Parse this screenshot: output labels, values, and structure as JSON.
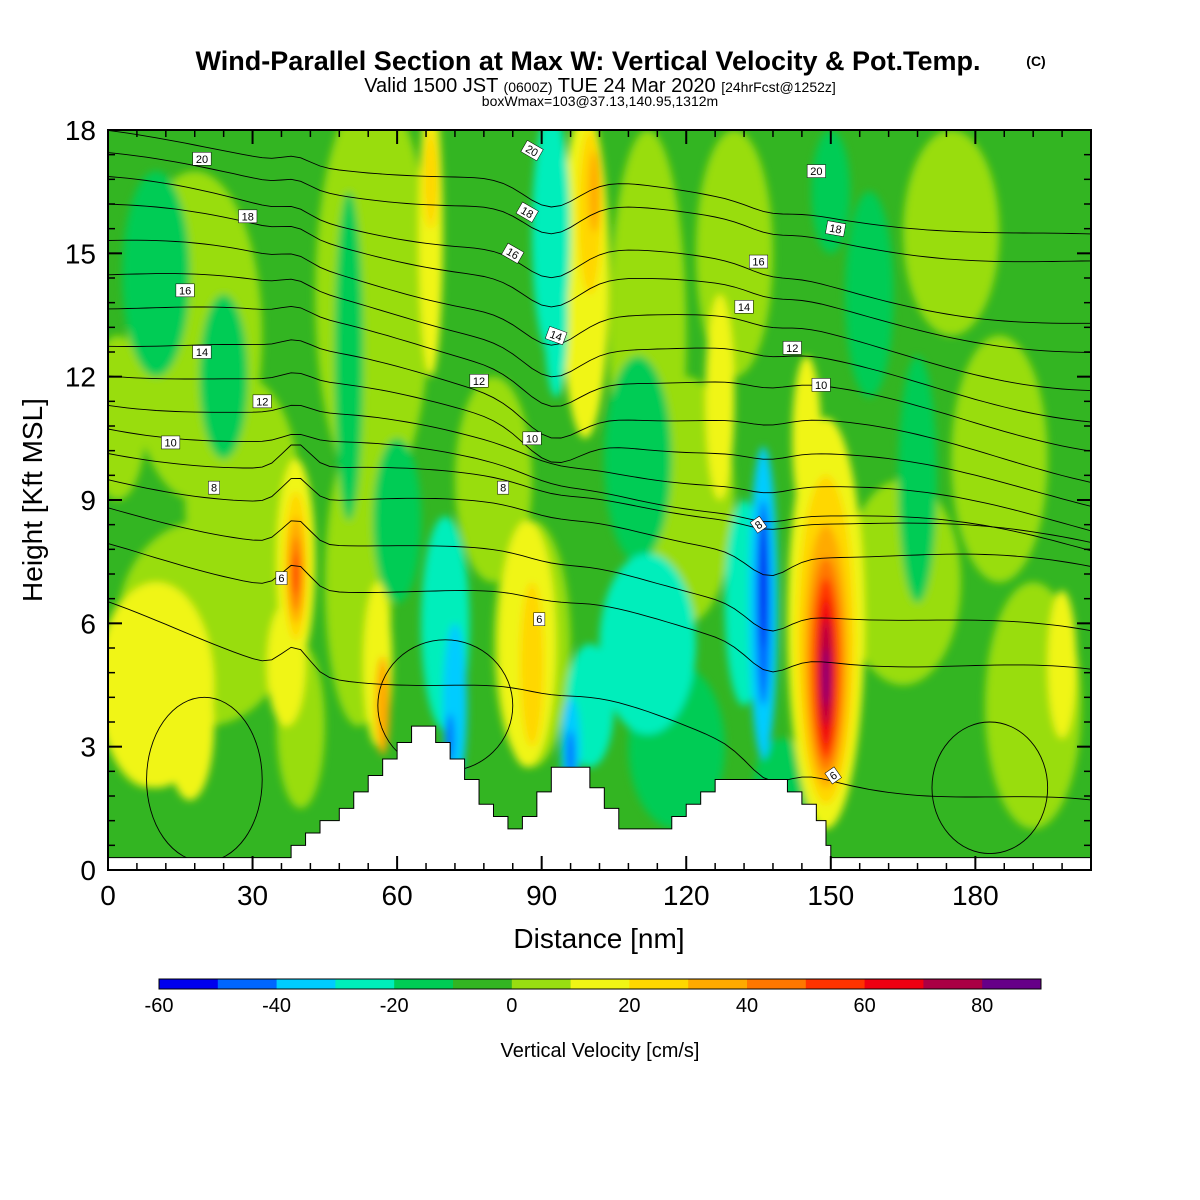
{
  "header": {
    "title": "Wind-Parallel Section at Max W: Vertical Velocity & Pot.Temp.",
    "copyright": "(C)",
    "valid_prefix": "Valid 1500 JST",
    "valid_utc": "(0600Z)",
    "valid_date": "TUE 24 Mar 2020",
    "forecast": "[24hrFcst@1252z]",
    "boxwmax": "boxWmax=103@37.13,140.95,1312m"
  },
  "chart_data": {
    "type": "heatmap",
    "title": "Wind-Parallel Section at Max W: Vertical Velocity & Pot.Temp.",
    "xlabel": "Distance [nm]",
    "ylabel": "Height [Kft MSL]",
    "xlim": [
      0,
      204
    ],
    "ylim": [
      0,
      18
    ],
    "x_ticks": [
      "0",
      "30",
      "60",
      "90",
      "120",
      "150",
      "180"
    ],
    "x_tick_values": [
      0,
      30,
      60,
      90,
      120,
      150,
      180
    ],
    "y_ticks": [
      "0",
      "3",
      "6",
      "9",
      "12",
      "15",
      "18"
    ],
    "y_tick_values": [
      0,
      3,
      6,
      9,
      12,
      15,
      18
    ],
    "colorbar": {
      "label": "Vertical Velocity [cm/s]",
      "tick_labels": [
        "-60",
        "-40",
        "-20",
        "0",
        "20",
        "40",
        "60",
        "80"
      ],
      "tick_values": [
        -60,
        -40,
        -20,
        0,
        20,
        40,
        60,
        80
      ],
      "levels": [
        -60,
        -50,
        -40,
        -30,
        -20,
        -10,
        0,
        10,
        20,
        30,
        40,
        50,
        60,
        70,
        80,
        90
      ],
      "colors": [
        "#0000ee",
        "#0066ff",
        "#00ccff",
        "#00eebb",
        "#00cc55",
        "#33b522",
        "#99dd11",
        "#f0f515",
        "#ffd700",
        "#ffaa00",
        "#ff7700",
        "#ff3300",
        "#ee0011",
        "#aa0044",
        "#660088"
      ]
    },
    "w_features": [
      {
        "x": 150,
        "z": 4.8,
        "w": 85
      },
      {
        "x": 39,
        "z": 7.5,
        "w": 50
      },
      {
        "x": 136,
        "z": 6.5,
        "w": -55
      },
      {
        "x": 100,
        "z": 16.0,
        "w": 35
      },
      {
        "x": 67,
        "z": 16.5,
        "w": 25
      },
      {
        "x": 91,
        "z": 15.0,
        "w": -25
      },
      {
        "x": 95,
        "z": 2.5,
        "w": -50
      },
      {
        "x": 72,
        "z": 3.5,
        "w": -45
      },
      {
        "x": 88,
        "z": 4.5,
        "w": 25
      },
      {
        "x": 0,
        "z": 4.5,
        "w": 18
      },
      {
        "x": 196,
        "z": 5.0,
        "w": 15
      }
    ],
    "isentropes": {
      "labels": [
        "20",
        "18",
        "16",
        "14",
        "12",
        "10",
        "8",
        "6",
        "6",
        "6"
      ],
      "values": [
        20,
        18,
        16,
        14,
        12,
        10,
        8,
        6,
        6,
        6
      ]
    },
    "terrain": [
      {
        "x": 0,
        "z": 0.3
      },
      {
        "x": 35,
        "z": 0.3
      },
      {
        "x": 38,
        "z": 0.6
      },
      {
        "x": 41,
        "z": 0.9
      },
      {
        "x": 44,
        "z": 1.2
      },
      {
        "x": 48,
        "z": 1.5
      },
      {
        "x": 51,
        "z": 1.9
      },
      {
        "x": 54,
        "z": 2.3
      },
      {
        "x": 57,
        "z": 2.7
      },
      {
        "x": 60,
        "z": 3.1
      },
      {
        "x": 63,
        "z": 3.5
      },
      {
        "x": 66,
        "z": 3.5
      },
      {
        "x": 68,
        "z": 3.1
      },
      {
        "x": 71,
        "z": 2.7
      },
      {
        "x": 74,
        "z": 2.2
      },
      {
        "x": 77,
        "z": 1.6
      },
      {
        "x": 80,
        "z": 1.3
      },
      {
        "x": 83,
        "z": 1.0
      },
      {
        "x": 86,
        "z": 1.3
      },
      {
        "x": 89,
        "z": 1.9
      },
      {
        "x": 92,
        "z": 2.5
      },
      {
        "x": 97,
        "z": 2.5
      },
      {
        "x": 100,
        "z": 2.0
      },
      {
        "x": 103,
        "z": 1.5
      },
      {
        "x": 106,
        "z": 1.0
      },
      {
        "x": 114,
        "z": 1.0
      },
      {
        "x": 117,
        "z": 1.3
      },
      {
        "x": 120,
        "z": 1.6
      },
      {
        "x": 123,
        "z": 1.9
      },
      {
        "x": 126,
        "z": 2.2
      },
      {
        "x": 138,
        "z": 2.2
      },
      {
        "x": 141,
        "z": 1.9
      },
      {
        "x": 144,
        "z": 1.6
      },
      {
        "x": 147,
        "z": 1.2
      },
      {
        "x": 149,
        "z": 0.6
      },
      {
        "x": 150,
        "z": 0.3
      },
      {
        "x": 204,
        "z": 0.3
      }
    ]
  }
}
